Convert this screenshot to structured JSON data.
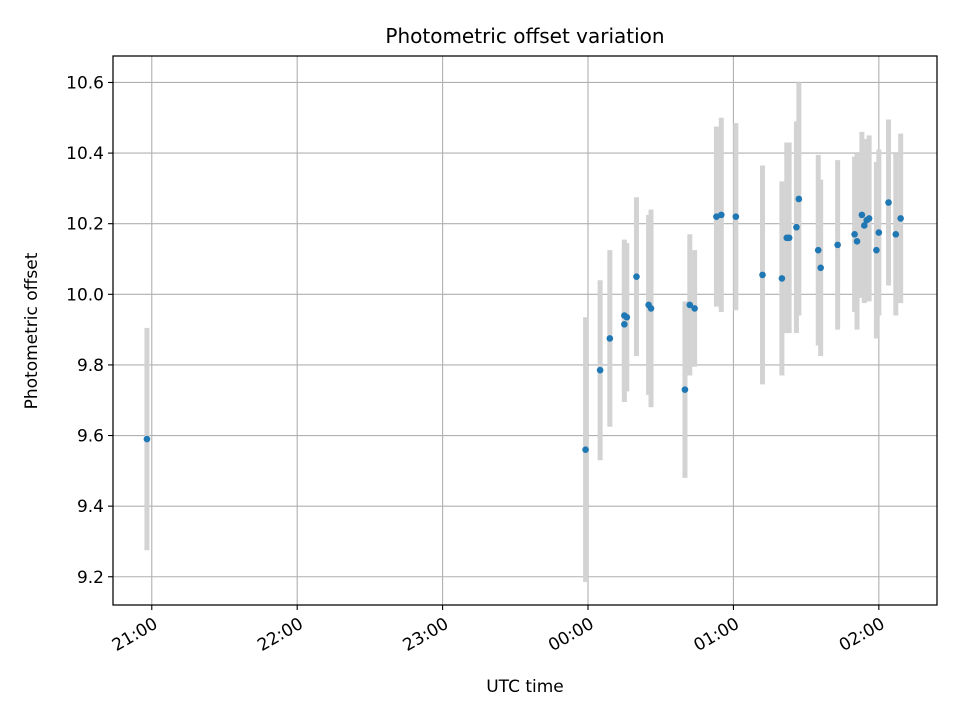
{
  "chart_data": {
    "type": "scatter",
    "title": "Photometric offset variation",
    "xlabel": "UTC time",
    "ylabel": "Photometric offset",
    "xlim": [
      "20:44",
      "02:24"
    ],
    "ylim": [
      9.12,
      10.675
    ],
    "x_ticks": [
      "21:00",
      "22:00",
      "23:00",
      "00:00",
      "01:00",
      "02:00"
    ],
    "y_ticks": [
      9.2,
      9.4,
      9.6,
      9.8,
      10.0,
      10.2,
      10.4,
      10.6
    ],
    "grid": true,
    "x_tick_rotation_deg": 30,
    "colors": {
      "points": "#1f77b4",
      "errorbars": "#d3d3d3",
      "grid": "#b0b0b0"
    },
    "points": [
      {
        "t": "20:58",
        "y": 9.59,
        "err": 0.315
      },
      {
        "t": "23:59",
        "y": 9.56,
        "err": 0.375
      },
      {
        "t": "00:05",
        "y": 9.785,
        "err": 0.255
      },
      {
        "t": "00:09",
        "y": 9.875,
        "err": 0.25
      },
      {
        "t": "00:15",
        "y": 9.94,
        "err": 0.215
      },
      {
        "t": "00:15",
        "y": 9.915,
        "err": 0.22
      },
      {
        "t": "00:16",
        "y": 9.935,
        "err": 0.21
      },
      {
        "t": "00:20",
        "y": 10.05,
        "err": 0.225
      },
      {
        "t": "00:25",
        "y": 9.97,
        "err": 0.255
      },
      {
        "t": "00:26",
        "y": 9.96,
        "err": 0.28
      },
      {
        "t": "00:40",
        "y": 9.73,
        "err": 0.25
      },
      {
        "t": "00:42",
        "y": 9.97,
        "err": 0.2
      },
      {
        "t": "00:44",
        "y": 9.96,
        "err": 0.165
      },
      {
        "t": "00:53",
        "y": 10.22,
        "err": 0.255
      },
      {
        "t": "00:55",
        "y": 10.225,
        "err": 0.275
      },
      {
        "t": "01:01",
        "y": 10.22,
        "err": 0.265
      },
      {
        "t": "01:12",
        "y": 10.055,
        "err": 0.31
      },
      {
        "t": "01:20",
        "y": 10.045,
        "err": 0.275
      },
      {
        "t": "01:22",
        "y": 10.16,
        "err": 0.27
      },
      {
        "t": "01:23",
        "y": 10.16,
        "err": 0.27
      },
      {
        "t": "01:26",
        "y": 10.19,
        "err": 0.3
      },
      {
        "t": "01:27",
        "y": 10.27,
        "err": 0.33
      },
      {
        "t": "01:35",
        "y": 10.125,
        "err": 0.27
      },
      {
        "t": "01:36",
        "y": 10.075,
        "err": 0.25
      },
      {
        "t": "01:43",
        "y": 10.14,
        "err": 0.24
      },
      {
        "t": "01:50",
        "y": 10.17,
        "err": 0.22
      },
      {
        "t": "01:51",
        "y": 10.15,
        "err": 0.25
      },
      {
        "t": "01:53",
        "y": 10.225,
        "err": 0.235
      },
      {
        "t": "01:54",
        "y": 10.195,
        "err": 0.22
      },
      {
        "t": "01:55",
        "y": 10.21,
        "err": 0.23
      },
      {
        "t": "01:56",
        "y": 10.215,
        "err": 0.235
      },
      {
        "t": "01:59",
        "y": 10.125,
        "err": 0.25
      },
      {
        "t": "02:00",
        "y": 10.175,
        "err": 0.235
      },
      {
        "t": "02:04",
        "y": 10.26,
        "err": 0.235
      },
      {
        "t": "02:07",
        "y": 10.17,
        "err": 0.23
      },
      {
        "t": "02:09",
        "y": 10.215,
        "err": 0.24
      }
    ]
  }
}
